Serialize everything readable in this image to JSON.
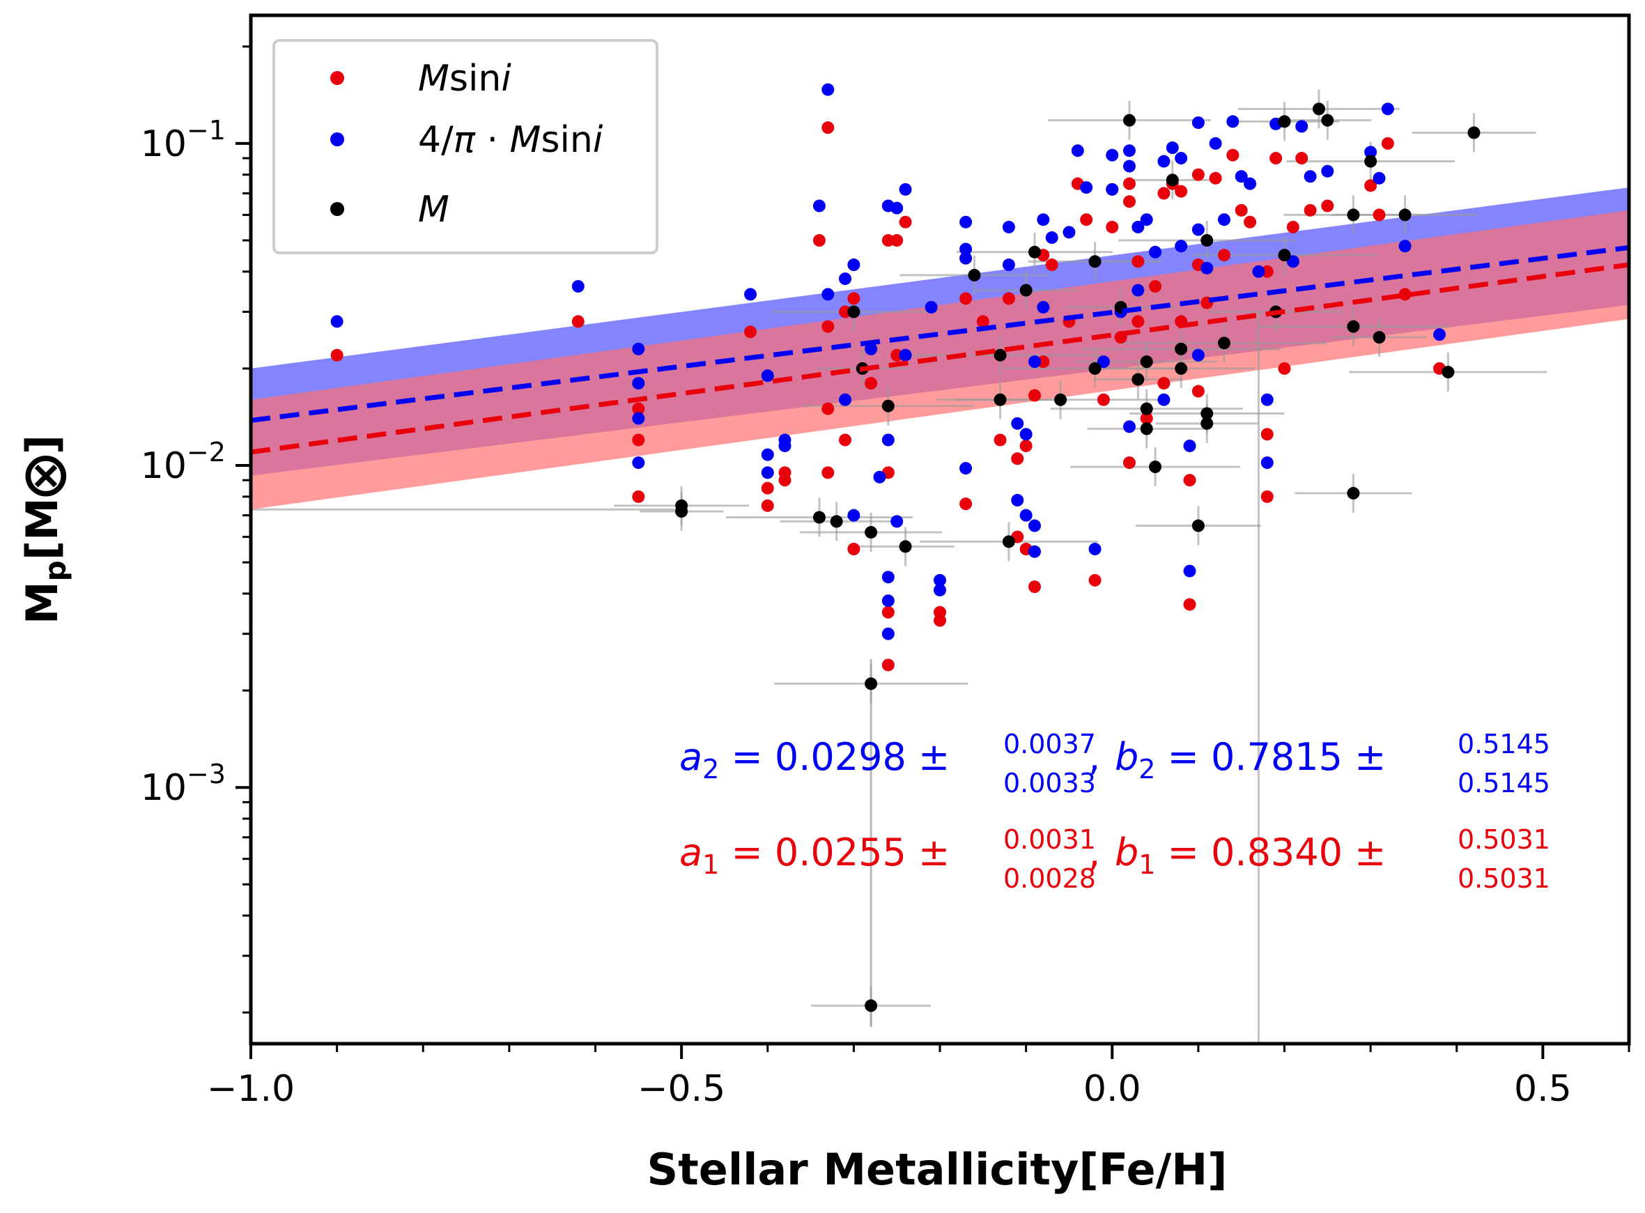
{
  "chart_data": {
    "type": "scatter",
    "xlabel": "Stellar Metallicity[Fe/H]",
    "ylabel": "M",
    "ylabel_sub": "p",
    "ylabel_unit": "[M⨂]",
    "xlim": [
      -1.0,
      0.6
    ],
    "ylim": [
      0.00016,
      0.25
    ],
    "yscale": "log",
    "x_ticks": [
      -1.0,
      -0.5,
      0.0,
      0.5
    ],
    "x_tick_labels": [
      "−1.0",
      "−0.5",
      "0.0",
      "0.5"
    ],
    "y_ticks": [
      0.001,
      0.01,
      0.1
    ],
    "y_tick_labels": [
      {
        "base": "10",
        "exp": "−3"
      },
      {
        "base": "10",
        "exp": "−2"
      },
      {
        "base": "10",
        "exp": "−1"
      }
    ],
    "legend": {
      "position": "top-left",
      "entries": [
        {
          "label_html": "<tspan font-style=\"italic\">M</tspan><tspan font-style=\"normal\">sin</tspan><tspan font-style=\"italic\">i</tspan>",
          "label": "Msini",
          "color": "#e8000b"
        },
        {
          "label": "4/π·Msini",
          "color": "#0000f5"
        },
        {
          "label": "M",
          "color": "#000000"
        }
      ]
    },
    "fits": [
      {
        "name": "4/π·Msini",
        "color": "#0000f5",
        "band_color": "#6e6eff",
        "line": [
          [
            -1.0,
            0.0138
          ],
          [
            0.6,
            0.0475
          ]
        ],
        "band_upper": [
          [
            -1.0,
            0.02
          ],
          [
            0.6,
            0.073
          ]
        ],
        "band_lower": [
          [
            -1.0,
            0.0093
          ],
          [
            0.6,
            0.0315
          ]
        ]
      },
      {
        "name": "Msini",
        "color": "#e8000b",
        "band_color": "#ff7070",
        "line": [
          [
            -1.0,
            0.011
          ],
          [
            0.6,
            0.042
          ]
        ],
        "band_upper": [
          [
            -1.0,
            0.016
          ],
          [
            0.6,
            0.062
          ]
        ],
        "band_lower": [
          [
            -1.0,
            0.0073
          ],
          [
            0.6,
            0.0285
          ]
        ]
      }
    ],
    "annotations": [
      {
        "color": "#0000f5",
        "a_sym": "a",
        "a_sub": "2",
        "a_val": "= 0.0298 ±",
        "a_up": "0.0037",
        "a_lo": "0.0033",
        "b_sym": "b",
        "b_sub": "2",
        "b_val": "= 0.7815 ±",
        "b_up": "0.5145",
        "b_lo": "0.5145"
      },
      {
        "color": "#e8000b",
        "a_sym": "a",
        "a_sub": "1",
        "a_val": "= 0.0255 ±",
        "a_up": "0.0031",
        "a_lo": "0.0028",
        "b_sym": "b",
        "b_sub": "1",
        "b_val": "= 0.8340 ±",
        "b_up": "0.5031",
        "b_lo": "0.5031"
      }
    ],
    "series": [
      {
        "name": "Msini",
        "color": "#e8000b",
        "points": [
          [
            -0.9,
            0.022
          ],
          [
            -0.62,
            0.028
          ],
          [
            -0.55,
            0.012
          ],
          [
            -0.55,
            0.008
          ],
          [
            -0.55,
            0.015
          ],
          [
            -0.42,
            0.026
          ],
          [
            -0.4,
            0.0085
          ],
          [
            -0.4,
            0.0075
          ],
          [
            -0.38,
            0.0095
          ],
          [
            -0.38,
            0.009
          ],
          [
            -0.34,
            0.05
          ],
          [
            -0.33,
            0.112
          ],
          [
            -0.33,
            0.027
          ],
          [
            -0.33,
            0.015
          ],
          [
            -0.33,
            0.0095
          ],
          [
            -0.31,
            0.012
          ],
          [
            -0.31,
            0.03
          ],
          [
            -0.3,
            0.033
          ],
          [
            -0.3,
            0.0055
          ],
          [
            -0.28,
            0.018
          ],
          [
            -0.26,
            0.05
          ],
          [
            -0.25,
            0.05
          ],
          [
            -0.26,
            0.0035
          ],
          [
            -0.26,
            0.0024
          ],
          [
            -0.26,
            0.0095
          ],
          [
            -0.25,
            0.022
          ],
          [
            -0.24,
            0.057
          ],
          [
            -0.2,
            0.0035
          ],
          [
            -0.2,
            0.0033
          ],
          [
            -0.17,
            0.0076
          ],
          [
            -0.17,
            0.033
          ],
          [
            -0.17,
            0.044
          ],
          [
            -0.15,
            0.028
          ],
          [
            -0.13,
            0.012
          ],
          [
            -0.12,
            0.033
          ],
          [
            -0.11,
            0.006
          ],
          [
            -0.11,
            0.0105
          ],
          [
            -0.1,
            0.0055
          ],
          [
            -0.1,
            0.0115
          ],
          [
            -0.09,
            0.0042
          ],
          [
            -0.09,
            0.0165
          ],
          [
            -0.08,
            0.045
          ],
          [
            -0.08,
            0.021
          ],
          [
            -0.07,
            0.042
          ],
          [
            -0.05,
            0.028
          ],
          [
            -0.04,
            0.075
          ],
          [
            -0.03,
            0.058
          ],
          [
            -0.02,
            0.0044
          ],
          [
            -0.01,
            0.016
          ],
          [
            0.0,
            0.055
          ],
          [
            0.0,
            0.072
          ],
          [
            0.01,
            0.025
          ],
          [
            0.02,
            0.066
          ],
          [
            0.02,
            0.075
          ],
          [
            0.02,
            0.0102
          ],
          [
            0.03,
            0.043
          ],
          [
            0.03,
            0.028
          ],
          [
            0.04,
            0.014
          ],
          [
            0.05,
            0.036
          ],
          [
            0.06,
            0.018
          ],
          [
            0.06,
            0.07
          ],
          [
            0.07,
            0.075
          ],
          [
            0.08,
            0.028
          ],
          [
            0.08,
            0.071
          ],
          [
            0.09,
            0.0037
          ],
          [
            0.09,
            0.009
          ],
          [
            0.1,
            0.042
          ],
          [
            0.1,
            0.08
          ],
          [
            0.1,
            0.017
          ],
          [
            0.11,
            0.032
          ],
          [
            0.12,
            0.078
          ],
          [
            0.13,
            0.045
          ],
          [
            0.14,
            0.092
          ],
          [
            0.15,
            0.062
          ],
          [
            0.16,
            0.057
          ],
          [
            0.18,
            0.04
          ],
          [
            0.18,
            0.0125
          ],
          [
            0.18,
            0.008
          ],
          [
            0.19,
            0.09
          ],
          [
            0.2,
            0.02
          ],
          [
            0.21,
            0.055
          ],
          [
            0.22,
            0.09
          ],
          [
            0.23,
            0.062
          ],
          [
            0.25,
            0.064
          ],
          [
            0.3,
            0.074
          ],
          [
            0.31,
            0.06
          ],
          [
            0.32,
            0.1
          ],
          [
            0.34,
            0.034
          ],
          [
            0.38,
            0.02
          ]
        ]
      },
      {
        "name": "4/π·Msini",
        "color": "#0000f5",
        "points": [
          [
            -0.9,
            0.028
          ],
          [
            -0.62,
            0.036
          ],
          [
            -0.55,
            0.023
          ],
          [
            -0.55,
            0.014
          ],
          [
            -0.55,
            0.0102
          ],
          [
            -0.55,
            0.018
          ],
          [
            -0.42,
            0.034
          ],
          [
            -0.4,
            0.019
          ],
          [
            -0.4,
            0.0108
          ],
          [
            -0.4,
            0.0095
          ],
          [
            -0.38,
            0.0115
          ],
          [
            -0.38,
            0.012
          ],
          [
            -0.34,
            0.064
          ],
          [
            -0.33,
            0.147
          ],
          [
            -0.33,
            0.034
          ],
          [
            -0.31,
            0.016
          ],
          [
            -0.31,
            0.038
          ],
          [
            -0.3,
            0.042
          ],
          [
            -0.3,
            0.007
          ],
          [
            -0.28,
            0.023
          ],
          [
            -0.26,
            0.064
          ],
          [
            -0.25,
            0.063
          ],
          [
            -0.27,
            0.0092
          ],
          [
            -0.26,
            0.0045
          ],
          [
            -0.26,
            0.0038
          ],
          [
            -0.26,
            0.003
          ],
          [
            -0.26,
            0.012
          ],
          [
            -0.25,
            0.0067
          ],
          [
            -0.24,
            0.072
          ],
          [
            -0.24,
            0.022
          ],
          [
            -0.21,
            0.031
          ],
          [
            -0.2,
            0.0044
          ],
          [
            -0.2,
            0.0041
          ],
          [
            -0.17,
            0.0098
          ],
          [
            -0.17,
            0.044
          ],
          [
            -0.17,
            0.047
          ],
          [
            -0.17,
            0.057
          ],
          [
            -0.12,
            0.055
          ],
          [
            -0.12,
            0.042
          ],
          [
            -0.11,
            0.0078
          ],
          [
            -0.11,
            0.0135
          ],
          [
            -0.1,
            0.007
          ],
          [
            -0.1,
            0.0125
          ],
          [
            -0.09,
            0.0054
          ],
          [
            -0.09,
            0.021
          ],
          [
            -0.09,
            0.0065
          ],
          [
            -0.08,
            0.058
          ],
          [
            -0.08,
            0.031
          ],
          [
            -0.07,
            0.051
          ],
          [
            -0.05,
            0.053
          ],
          [
            -0.04,
            0.095
          ],
          [
            -0.03,
            0.073
          ],
          [
            -0.02,
            0.0055
          ],
          [
            -0.01,
            0.021
          ],
          [
            0.0,
            0.092
          ],
          [
            0.0,
            0.072
          ],
          [
            0.01,
            0.03
          ],
          [
            0.02,
            0.085
          ],
          [
            0.02,
            0.095
          ],
          [
            0.02,
            0.0132
          ],
          [
            0.03,
            0.055
          ],
          [
            0.03,
            0.035
          ],
          [
            0.04,
            0.058
          ],
          [
            0.05,
            0.046
          ],
          [
            0.06,
            0.016
          ],
          [
            0.06,
            0.088
          ],
          [
            0.07,
            0.097
          ],
          [
            0.08,
            0.048
          ],
          [
            0.08,
            0.09
          ],
          [
            0.09,
            0.0047
          ],
          [
            0.09,
            0.0115
          ],
          [
            0.1,
            0.054
          ],
          [
            0.1,
            0.116
          ],
          [
            0.1,
            0.022
          ],
          [
            0.11,
            0.041
          ],
          [
            0.12,
            0.1
          ],
          [
            0.13,
            0.058
          ],
          [
            0.14,
            0.117
          ],
          [
            0.15,
            0.079
          ],
          [
            0.16,
            0.075
          ],
          [
            0.17,
            0.04
          ],
          [
            0.18,
            0.016
          ],
          [
            0.18,
            0.0102
          ],
          [
            0.19,
            0.115
          ],
          [
            0.21,
            0.043
          ],
          [
            0.22,
            0.113
          ],
          [
            0.23,
            0.079
          ],
          [
            0.25,
            0.082
          ],
          [
            0.3,
            0.094
          ],
          [
            0.31,
            0.078
          ],
          [
            0.32,
            0.128
          ],
          [
            0.34,
            0.048
          ],
          [
            0.38,
            0.0255
          ]
        ]
      },
      {
        "name": "M",
        "color": "#000000",
        "points": [
          [
            -0.5,
            0.0072
          ],
          [
            -0.5,
            0.0075
          ],
          [
            -0.34,
            0.0069
          ],
          [
            -0.32,
            0.0067
          ],
          [
            -0.3,
            0.03
          ],
          [
            -0.29,
            0.02
          ],
          [
            -0.28,
            0.0062
          ],
          [
            -0.28,
            0.0021
          ],
          [
            -0.28,
            0.00021
          ],
          [
            -0.26,
            0.0153
          ],
          [
            -0.24,
            0.0056
          ],
          [
            -0.16,
            0.039
          ],
          [
            -0.13,
            0.022
          ],
          [
            -0.13,
            0.016
          ],
          [
            -0.12,
            0.0058
          ],
          [
            -0.1,
            0.035
          ],
          [
            -0.09,
            0.046
          ],
          [
            -0.06,
            0.016
          ],
          [
            -0.02,
            0.043
          ],
          [
            -0.02,
            0.02
          ],
          [
            0.01,
            0.031
          ],
          [
            0.02,
            0.118
          ],
          [
            0.03,
            0.0185
          ],
          [
            0.04,
            0.021
          ],
          [
            0.04,
            0.015
          ],
          [
            0.04,
            0.013
          ],
          [
            0.05,
            0.0099
          ],
          [
            0.07,
            0.077
          ],
          [
            0.08,
            0.02
          ],
          [
            0.08,
            0.023
          ],
          [
            0.1,
            0.0065
          ],
          [
            0.11,
            0.05
          ],
          [
            0.11,
            0.0135
          ],
          [
            0.11,
            0.0145
          ],
          [
            0.13,
            0.024
          ],
          [
            0.19,
            0.03
          ],
          [
            0.2,
            0.045
          ],
          [
            0.2,
            0.117
          ],
          [
            0.24,
            0.128
          ],
          [
            0.25,
            0.118
          ],
          [
            0.28,
            0.06
          ],
          [
            0.28,
            0.027
          ],
          [
            0.28,
            0.0082
          ],
          [
            0.3,
            0.088
          ],
          [
            0.31,
            0.025
          ],
          [
            0.34,
            0.06
          ],
          [
            0.39,
            0.0195
          ],
          [
            0.42,
            0.108
          ]
        ]
      }
    ]
  }
}
